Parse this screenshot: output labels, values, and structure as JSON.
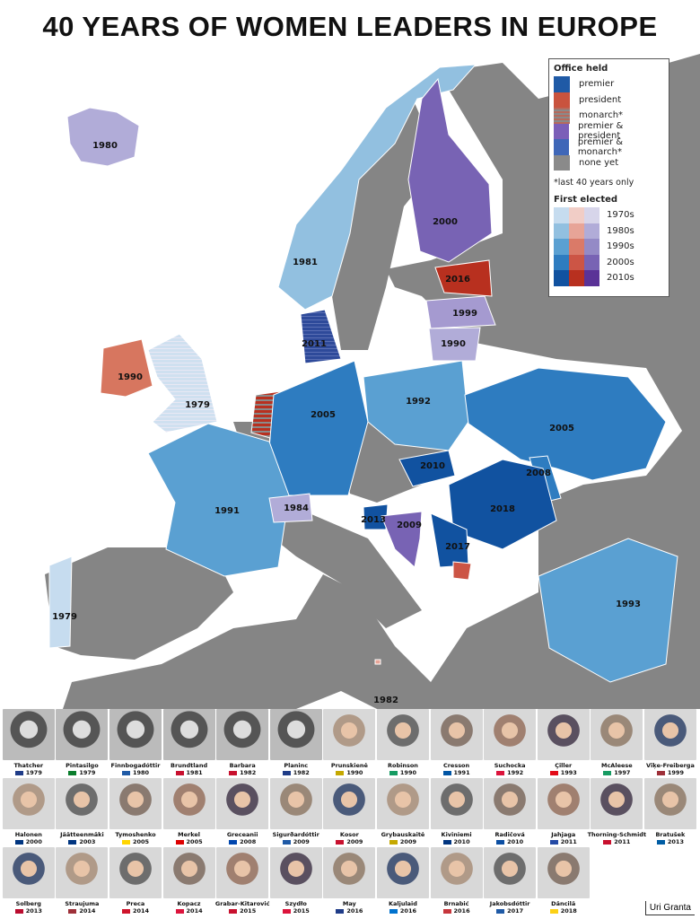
{
  "title": "40 YEARS OF WOMEN LEADERS IN EUROPE",
  "legend": {
    "office_title": "Office held",
    "offices": [
      {
        "label": "premier",
        "color": "#1f5aa6"
      },
      {
        "label": "president",
        "color": "#c9533e"
      },
      {
        "label": "monarch*",
        "color": "#b66a5c"
      },
      {
        "label": "premier & president",
        "color": "#7b5fb8"
      },
      {
        "label": "premier & monarch*",
        "color": "#3f67b8"
      },
      {
        "label": "none yet",
        "color": "#8a8a8a"
      }
    ],
    "note": "*last 40 years only",
    "elected_title": "First elected",
    "decades": [
      "1970s",
      "1980s",
      "1990s",
      "2000s",
      "2010s"
    ],
    "ramp": {
      "premier": [
        "#c6dcef",
        "#92c0e0",
        "#5aa0d2",
        "#2e7cc0",
        "#1152a0"
      ],
      "president": [
        "#f1cdc6",
        "#e7a497",
        "#da7a68",
        "#cc5545",
        "#b8301f"
      ],
      "both": [
        "#d7d5ea",
        "#b1acd8",
        "#948ac6",
        "#7863b4",
        "#5a3297"
      ]
    }
  },
  "countries": [
    {
      "name": "Iceland",
      "year": "1980",
      "color": "#b1acd8"
    },
    {
      "name": "Norway",
      "year": "1981",
      "color": "#92c0e0"
    },
    {
      "name": "Finland",
      "year": "2000",
      "color": "#7863b4"
    },
    {
      "name": "Estonia",
      "year": "2016",
      "color": "#b8301f"
    },
    {
      "name": "Latvia",
      "year": "1999",
      "color": "#a59ad0"
    },
    {
      "name": "Lithuania",
      "year": "1990",
      "color": "#b1acd8"
    },
    {
      "name": "Denmark",
      "year": "2011",
      "color": "#2e4a9a"
    },
    {
      "name": "United Kingdom",
      "year": "1979",
      "color": "#cfe0f0"
    },
    {
      "name": "Ireland",
      "year": "1990",
      "color": "#d7765f"
    },
    {
      "name": "Netherlands",
      "year": "",
      "color": "#b8301f"
    },
    {
      "name": "Germany",
      "year": "2005",
      "color": "#2e7cc0"
    },
    {
      "name": "Poland",
      "year": "1992",
      "color": "#5aa0d2"
    },
    {
      "name": "Ukraine",
      "year": "2005",
      "color": "#2e7cc0"
    },
    {
      "name": "France",
      "year": "1991",
      "color": "#5aa0d2"
    },
    {
      "name": "Switzerland",
      "year": "1984",
      "color": "#b1acd8"
    },
    {
      "name": "Slovakia",
      "year": "2010",
      "color": "#1152a0"
    },
    {
      "name": "Moldova",
      "year": "2008",
      "color": "#2e7cc0"
    },
    {
      "name": "Romania",
      "year": "2018",
      "color": "#1152a0"
    },
    {
      "name": "Slovenia",
      "year": "2013",
      "color": "#1152a0"
    },
    {
      "name": "Croatia",
      "year": "2009",
      "color": "#7863b4"
    },
    {
      "name": "Serbia",
      "year": "2017",
      "color": "#1152a0"
    },
    {
      "name": "Kosovo",
      "year": "",
      "color": "#cc5545"
    },
    {
      "name": "Portugal",
      "year": "1979",
      "color": "#c6dcef"
    },
    {
      "name": "Turkey",
      "year": "1993",
      "color": "#5aa0d2"
    },
    {
      "name": "Malta",
      "year": "1982",
      "color": "#e7a497"
    }
  ],
  "leaders": [
    {
      "name": "Thatcher",
      "year": "1979",
      "flag": "#1f3c88"
    },
    {
      "name": "Pintasilgo",
      "year": "1979",
      "flag": "#0a7d2c"
    },
    {
      "name": "Finnbogadóttir",
      "year": "1980",
      "flag": "#1f5aa6"
    },
    {
      "name": "Brundtland",
      "year": "1981",
      "flag": "#c8102e"
    },
    {
      "name": "Barbara",
      "year": "1982",
      "flag": "#c8102e"
    },
    {
      "name": "Planinc",
      "year": "1982",
      "flag": "#1f3c88"
    },
    {
      "name": "Prunskienė",
      "year": "1990",
      "flag": "#c5a800"
    },
    {
      "name": "Robinson",
      "year": "1990",
      "flag": "#169b62"
    },
    {
      "name": "Cresson",
      "year": "1991",
      "flag": "#0055a4"
    },
    {
      "name": "Suchocka",
      "year": "1992",
      "flag": "#dc143c"
    },
    {
      "name": "Çiller",
      "year": "1993",
      "flag": "#e30a17"
    },
    {
      "name": "McAleese",
      "year": "1997",
      "flag": "#169b62"
    },
    {
      "name": "Vīķe-Freiberga",
      "year": "1999",
      "flag": "#9e3039"
    },
    {
      "name": "Halonen",
      "year": "2000",
      "flag": "#003580"
    },
    {
      "name": "Jäätteenmäki",
      "year": "2003",
      "flag": "#003580"
    },
    {
      "name": "Tymoshenko",
      "year": "2005",
      "flag": "#ffd500"
    },
    {
      "name": "Merkel",
      "year": "2005",
      "flag": "#dd0000"
    },
    {
      "name": "Greceanii",
      "year": "2008",
      "flag": "#0046ae"
    },
    {
      "name": "Sigurðardóttir",
      "year": "2009",
      "flag": "#1f5aa6"
    },
    {
      "name": "Kosor",
      "year": "2009",
      "flag": "#c8102e"
    },
    {
      "name": "Grybauskaitė",
      "year": "2009",
      "flag": "#c5a800"
    },
    {
      "name": "Kiviniemi",
      "year": "2010",
      "flag": "#003580"
    },
    {
      "name": "Radičová",
      "year": "2010",
      "flag": "#0b4ea2"
    },
    {
      "name": "Jahjaga",
      "year": "2011",
      "flag": "#244aa5"
    },
    {
      "name": "Thorning-Schmidt",
      "year": "2011",
      "flag": "#c8102e"
    },
    {
      "name": "Bratušek",
      "year": "2013",
      "flag": "#005da4"
    },
    {
      "name": "Solberg",
      "year": "2013",
      "flag": "#ba0c2f"
    },
    {
      "name": "Straujuma",
      "year": "2014",
      "flag": "#9e3039"
    },
    {
      "name": "Preca",
      "year": "2014",
      "flag": "#cf142b"
    },
    {
      "name": "Kopacz",
      "year": "2014",
      "flag": "#dc143c"
    },
    {
      "name": "Grabar-Kitarović",
      "year": "2015",
      "flag": "#c8102e"
    },
    {
      "name": "Szydło",
      "year": "2015",
      "flag": "#dc143c"
    },
    {
      "name": "May",
      "year": "2016",
      "flag": "#1f3c88"
    },
    {
      "name": "Kaljulaid",
      "year": "2016",
      "flag": "#0072ce"
    },
    {
      "name": "Brnabić",
      "year": "2016",
      "flag": "#c6363c"
    },
    {
      "name": "Jakobsdóttir",
      "year": "2017",
      "flag": "#1f5aa6"
    },
    {
      "name": "Dăncilă",
      "year": "2018",
      "flag": "#fcd116"
    }
  ],
  "credit": "Uri Granta"
}
